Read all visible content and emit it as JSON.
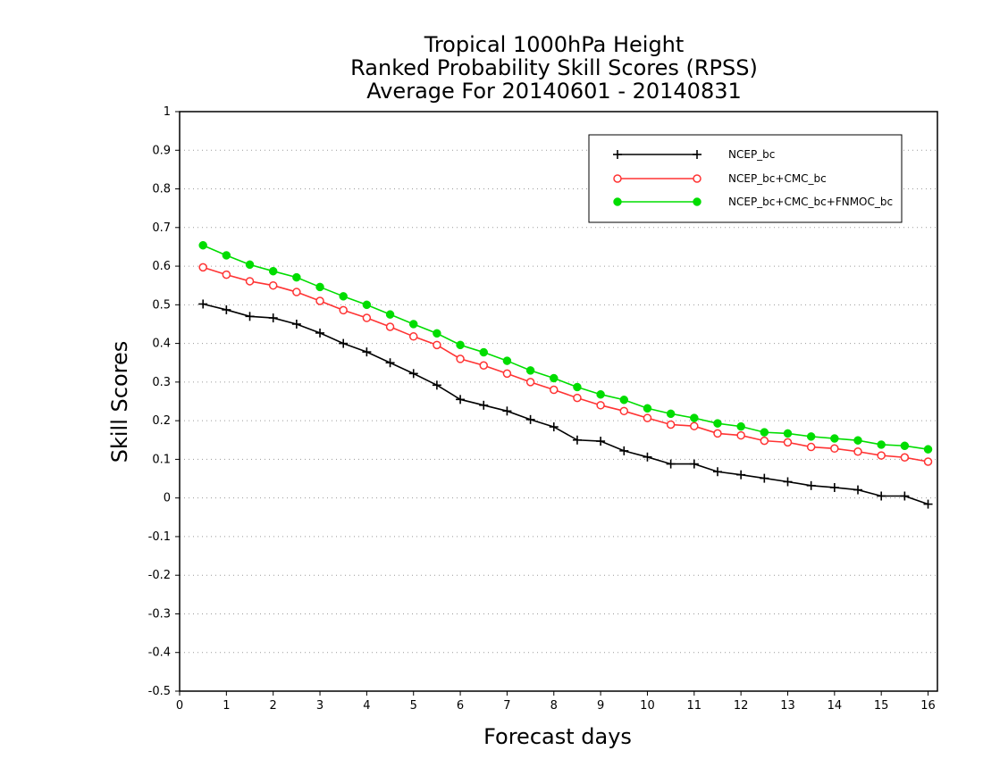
{
  "chart_data": {
    "type": "line",
    "title_lines": [
      "Tropical 1000hPa Height",
      "Ranked Probability Skill Scores (RPSS)",
      "Average For 20140601 - 20140831"
    ],
    "xlabel": "Forecast days",
    "ylabel": "Skill Scores",
    "xlim": [
      0,
      16.2
    ],
    "ylim": [
      -0.5,
      1
    ],
    "xticks": [
      0,
      1,
      2,
      3,
      4,
      5,
      6,
      7,
      8,
      9,
      10,
      11,
      12,
      13,
      14,
      15,
      16
    ],
    "xtick_labels": [
      "0",
      "1",
      "2",
      "3",
      "4",
      "5",
      "6",
      "7",
      "8",
      "9",
      "10",
      "11",
      "12",
      "13",
      "14",
      "15",
      "16"
    ],
    "yticks": [
      -0.5,
      -0.4,
      -0.3,
      -0.2,
      -0.1,
      0,
      0.1,
      0.2,
      0.3,
      0.4,
      0.5,
      0.6,
      0.7,
      0.8,
      0.9,
      1
    ],
    "ytick_labels": [
      "-0.5",
      "-0.4",
      "-0.3",
      "-0.2",
      "-0.1",
      "0",
      "0.1",
      "0.2",
      "0.3",
      "0.4",
      "0.5",
      "0.6",
      "0.7",
      "0.8",
      "0.9",
      "1"
    ],
    "grid": "horizontal dotted",
    "legend_position": "top-right",
    "x": [
      0.5,
      1,
      1.5,
      2,
      2.5,
      3,
      3.5,
      4,
      4.5,
      5,
      5.5,
      6,
      6.5,
      7,
      7.5,
      8,
      8.5,
      9,
      9.5,
      10,
      10.5,
      11,
      11.5,
      12,
      12.5,
      13,
      13.5,
      14,
      14.5,
      15,
      15.5,
      16
    ],
    "series": [
      {
        "name": "NCEP_bc",
        "color": "#000000",
        "marker": "plus",
        "values": [
          0.502,
          0.487,
          0.47,
          0.466,
          0.45,
          0.427,
          0.4,
          0.378,
          0.35,
          0.322,
          0.292,
          0.255,
          0.24,
          0.225,
          0.203,
          0.184,
          0.15,
          0.147,
          0.122,
          0.106,
          0.088,
          0.088,
          0.068,
          0.06,
          0.051,
          0.042,
          0.032,
          0.027,
          0.021,
          0.005,
          0.005,
          -0.016
        ]
      },
      {
        "name": "NCEP_bc+CMC_bc",
        "color": "#ff3333",
        "marker": "open-circle",
        "values": [
          0.597,
          0.578,
          0.561,
          0.55,
          0.533,
          0.51,
          0.486,
          0.466,
          0.443,
          0.418,
          0.396,
          0.36,
          0.343,
          0.322,
          0.3,
          0.28,
          0.259,
          0.24,
          0.225,
          0.207,
          0.19,
          0.186,
          0.167,
          0.162,
          0.148,
          0.144,
          0.132,
          0.128,
          0.12,
          0.11,
          0.105,
          0.094
        ]
      },
      {
        "name": "NCEP_bc+CMC_bc+FNMOC_bc",
        "color": "#00dd00",
        "marker": "filled-circle",
        "values": [
          0.654,
          0.628,
          0.604,
          0.587,
          0.571,
          0.546,
          0.522,
          0.5,
          0.475,
          0.45,
          0.426,
          0.396,
          0.377,
          0.355,
          0.33,
          0.31,
          0.287,
          0.268,
          0.254,
          0.232,
          0.218,
          0.207,
          0.193,
          0.185,
          0.17,
          0.167,
          0.159,
          0.154,
          0.149,
          0.138,
          0.135,
          0.126
        ]
      }
    ]
  }
}
